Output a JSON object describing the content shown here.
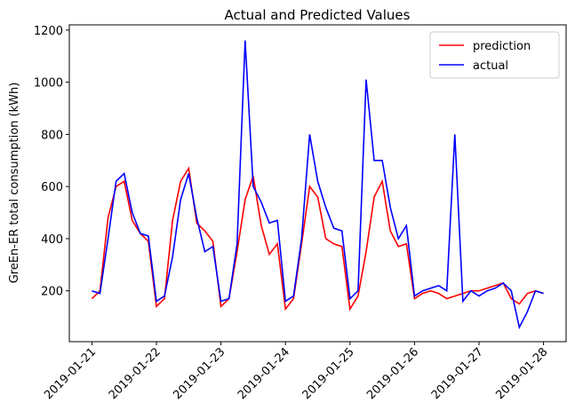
{
  "chart_data": {
    "type": "line",
    "title": "Actual and Predicted Values",
    "y_label": "GreEn-ER total consumption (kWh)",
    "x": [
      0,
      0.125,
      0.25,
      0.375,
      0.5,
      0.625,
      0.75,
      0.875,
      1,
      1.125,
      1.25,
      1.375,
      1.5,
      1.625,
      1.75,
      1.875,
      2,
      2.125,
      2.25,
      2.375,
      2.5,
      2.625,
      2.75,
      2.875,
      3,
      3.125,
      3.25,
      3.375,
      3.5,
      3.625,
      3.75,
      3.875,
      4,
      4.125,
      4.25,
      4.375,
      4.5,
      4.625,
      4.75,
      4.875,
      5,
      5.125,
      5.25,
      5.375,
      5.5,
      5.625,
      5.75,
      5.875,
      6,
      6.125,
      6.25,
      6.375,
      6.5,
      6.625,
      6.75,
      6.875,
      7
    ],
    "series": [
      {
        "name": "prediction",
        "color": "#ff0000",
        "values": [
          170,
          200,
          480,
          600,
          620,
          470,
          420,
          390,
          140,
          170,
          470,
          620,
          670,
          460,
          430,
          390,
          140,
          170,
          350,
          550,
          640,
          450,
          340,
          380,
          130,
          170,
          380,
          600,
          560,
          400,
          380,
          370,
          130,
          180,
          350,
          560,
          620,
          430,
          370,
          380,
          170,
          190,
          200,
          190,
          170,
          180,
          190,
          200,
          200,
          210,
          220,
          230,
          170,
          150,
          190,
          200,
          190
        ]
      },
      {
        "name": "actual",
        "color": "#0000ff",
        "values": [
          200,
          190,
          400,
          620,
          650,
          500,
          420,
          410,
          160,
          180,
          330,
          550,
          650,
          480,
          350,
          370,
          160,
          170,
          380,
          1160,
          600,
          540,
          460,
          470,
          160,
          180,
          400,
          800,
          620,
          520,
          440,
          430,
          170,
          200,
          1010,
          700,
          700,
          520,
          400,
          450,
          180,
          200,
          210,
          220,
          200,
          800,
          160,
          200,
          180,
          200,
          210,
          230,
          200,
          60,
          120,
          200,
          190
        ]
      }
    ],
    "xlim": [
      -0.35,
      7.35
    ],
    "xticks": [
      {
        "value": 0,
        "label": "2019-01-21"
      },
      {
        "value": 1,
        "label": "2019-01-22"
      },
      {
        "value": 2,
        "label": "2019-01-23"
      },
      {
        "value": 3,
        "label": "2019-01-24"
      },
      {
        "value": 4,
        "label": "2019-01-25"
      },
      {
        "value": 5,
        "label": "2019-01-26"
      },
      {
        "value": 6,
        "label": "2019-01-27"
      },
      {
        "value": 7,
        "label": "2019-01-28"
      }
    ],
    "ylim": [
      5,
      1220
    ],
    "yticks": [
      200,
      400,
      600,
      800,
      1000,
      1200
    ],
    "legend": "upper right"
  }
}
